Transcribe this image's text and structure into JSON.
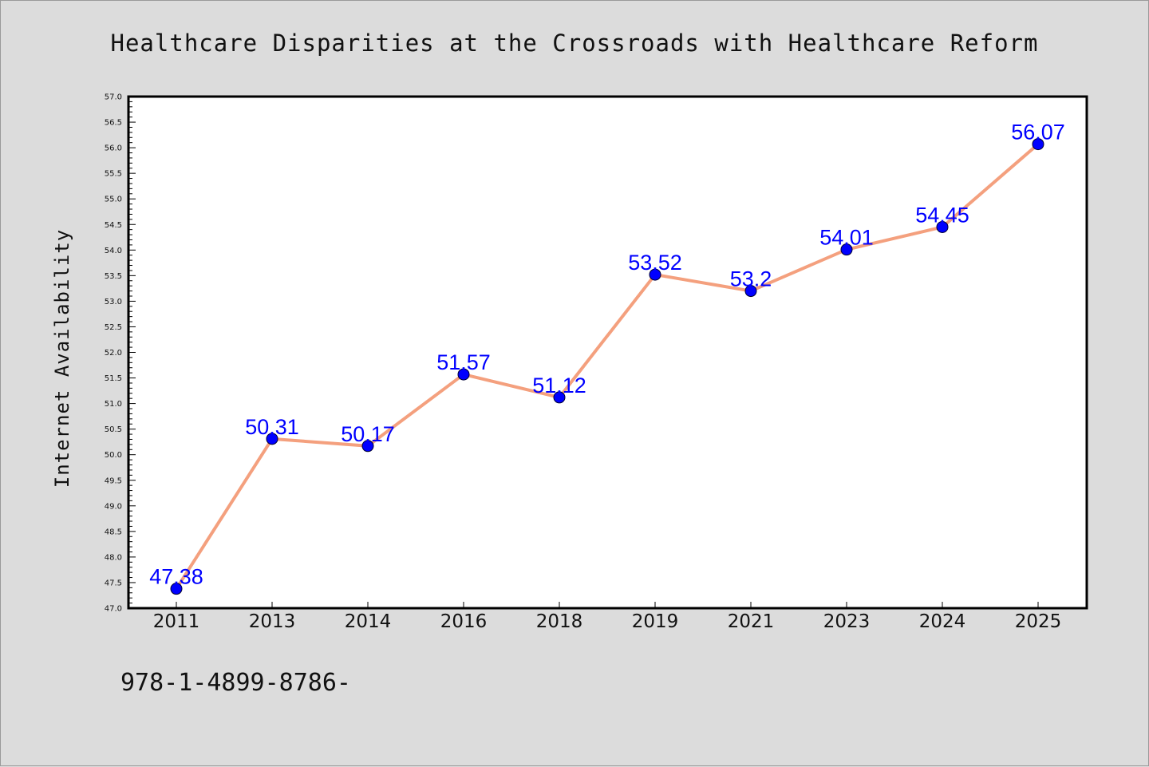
{
  "chart_data": {
    "type": "line",
    "title": "Healthcare Disparities at the Crossroads with Healthcare Reform",
    "xlabel": "",
    "ylabel": "Internet Availability",
    "categories": [
      "2011",
      "2013",
      "2014",
      "2016",
      "2018",
      "2019",
      "2021",
      "2023",
      "2024",
      "2025"
    ],
    "series": [
      {
        "values": [
          47.38,
          50.31,
          50.17,
          51.57,
          51.12,
          53.52,
          53.2,
          54.01,
          54.45,
          56.07
        ],
        "data_labels": [
          "47.38",
          "50.31",
          "50.17",
          "51.57",
          "51.12",
          "53.52",
          "53.2",
          "54.01",
          "54.45",
          "56.07"
        ],
        "line_color": "#f4a07e",
        "marker_color": "#0000ff"
      }
    ],
    "ylim": [
      47.0,
      57.0
    ],
    "yticks": [
      "47.0",
      "47.5",
      "48.0",
      "48.5",
      "49.0",
      "49.5",
      "50.0",
      "50.5",
      "51.0",
      "51.5",
      "52.0",
      "52.5",
      "53.0",
      "53.5",
      "54.0",
      "54.5",
      "55.0",
      "55.5",
      "56.0",
      "56.5",
      "57.0"
    ],
    "grid": false,
    "legend": "none"
  },
  "footer": {
    "text": "978-1-4899-8786-"
  },
  "colors": {
    "figure_background": "#dcdcdc",
    "plot_background": "#ffffff",
    "line": "#f4a07e",
    "marker": "#0000ff",
    "data_label": "#0000ff"
  }
}
